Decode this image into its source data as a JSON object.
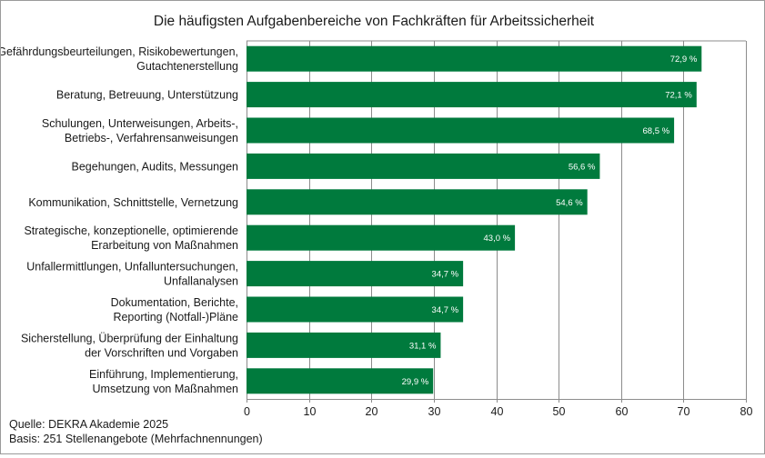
{
  "chart_data": {
    "type": "bar",
    "orientation": "horizontal",
    "title": "Die häufigsten Aufgabenbereiche von Fachkräften für Arbeitssicherheit",
    "categories": [
      [
        "Gefährdungsbeurteilungen, Risikobewertungen,",
        "Gutachtenerstellung"
      ],
      [
        "Beratung, Betreuung, Unterstützung"
      ],
      [
        "Schulungen, Unterweisungen, Arbeits-,",
        "Betriebs-, Verfahrensanweisungen"
      ],
      [
        "Begehungen, Audits, Messungen"
      ],
      [
        "Kommunikation, Schnittstelle, Vernetzung"
      ],
      [
        "Strategische, konzeptionelle, optimierende",
        "Erarbeitung von Maßnahmen"
      ],
      [
        "Unfallermittlungen, Unfalluntersuchungen,",
        "Unfallanalysen"
      ],
      [
        "Dokumentation, Berichte,",
        "Reporting (Notfall-)Pläne"
      ],
      [
        "Sicherstellung, Überprüfung der Einhaltung",
        "der Vorschriften und Vorgaben"
      ],
      [
        "Einführung, Implementierung,",
        "Umsetzung von Maßnahmen"
      ]
    ],
    "values": [
      72.9,
      72.1,
      68.5,
      56.6,
      54.6,
      43.0,
      34.7,
      34.7,
      31.1,
      29.9
    ],
    "data_labels": [
      "72,9 %",
      "72,1 %",
      "68,5 %",
      "56,6 %",
      "54,6 %",
      "43,0 %",
      "34,7 %",
      "34,7 %",
      "31,1 %",
      "29,9 %"
    ],
    "xlim": [
      0,
      80
    ],
    "xticks": [
      0,
      10,
      20,
      30,
      40,
      50,
      60,
      70,
      80
    ],
    "grid": true,
    "bar_color": "#007a3d",
    "grid_color": "#8c8c8c"
  },
  "notes": {
    "source": "Quelle: DEKRA Akademie 2025",
    "basis": "Basis: 251 Stellenangebote (Mehrfachnennungen)"
  }
}
